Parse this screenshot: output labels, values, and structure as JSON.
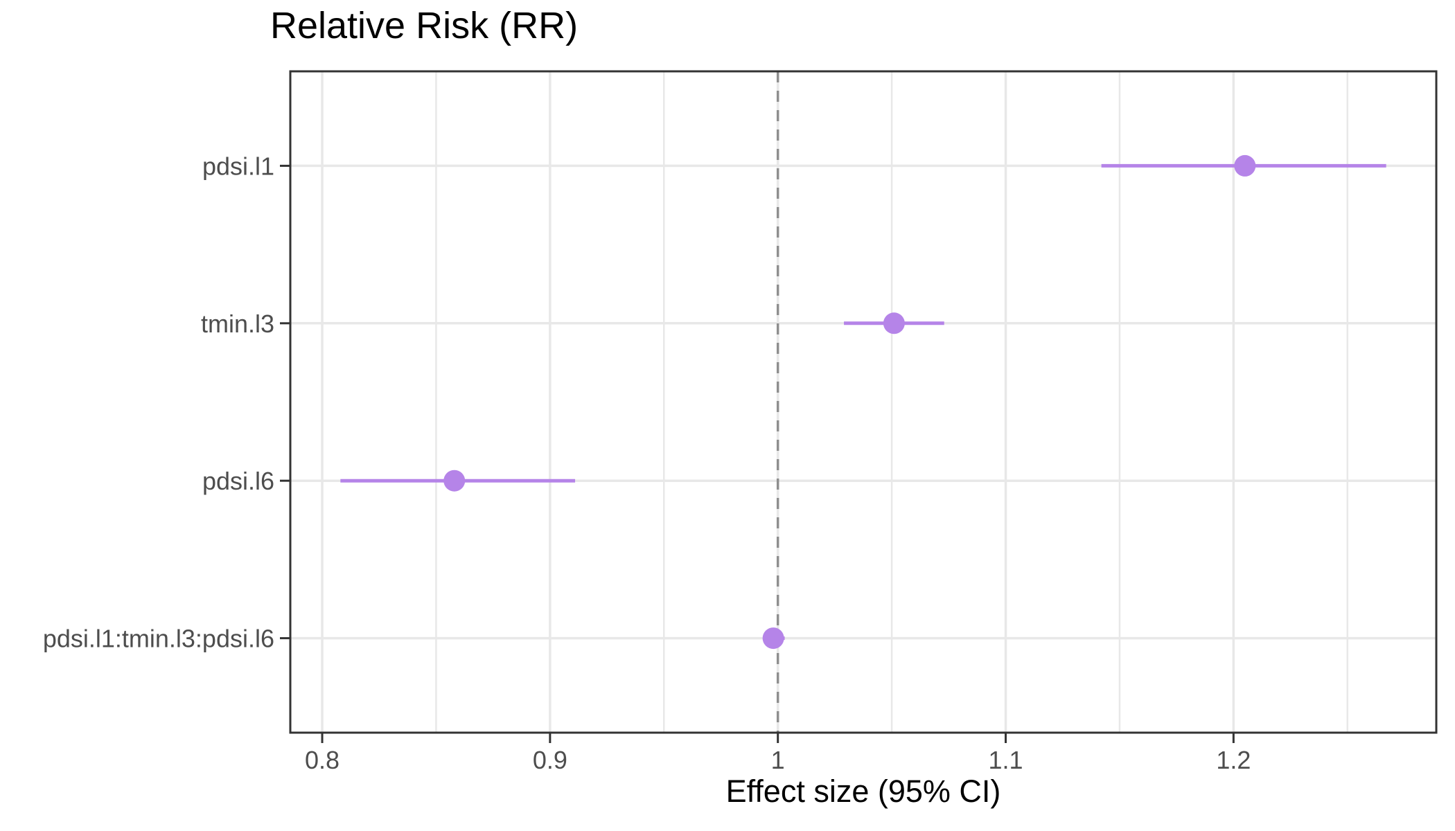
{
  "chart_data": {
    "type": "scatter",
    "variant": "forest-plot-dot-with-ci",
    "title": "Relative Risk (RR)",
    "xlabel": "Effect size (95% CI)",
    "ylabel": "",
    "legend": false,
    "grid": true,
    "categories": [
      "pdsi.l1",
      "tmin.l3",
      "pdsi.l6",
      "pdsi.l1:tmin.l3:pdsi.l6"
    ],
    "points": [
      {
        "label": "pdsi.l1",
        "estimate": 1.205,
        "ci_low": 1.142,
        "ci_high": 1.267
      },
      {
        "label": "tmin.l3",
        "estimate": 1.051,
        "ci_low": 1.029,
        "ci_high": 1.073
      },
      {
        "label": "pdsi.l6",
        "estimate": 0.858,
        "ci_low": 0.808,
        "ci_high": 0.911
      },
      {
        "label": "pdsi.l1:tmin.l3:pdsi.l6",
        "estimate": 0.998,
        "ci_low": 0.994,
        "ci_high": 1.003
      }
    ],
    "x_axis": {
      "range": [
        0.786,
        1.289
      ],
      "tick_values": [
        0.8,
        0.9,
        1.0,
        1.1,
        1.2
      ],
      "tick_labels": [
        "0.8",
        "0.9",
        "1",
        "1.1",
        "1.2"
      ],
      "minor_tick_values": [
        0.85,
        0.95,
        1.05,
        1.15,
        1.25
      ]
    },
    "reference_line": {
      "x": 1.0,
      "style": "dashed"
    },
    "colors": {
      "point": "#b584e8",
      "ci_line": "#b584e8",
      "grid": "#e8e8e8",
      "reference_line": "#8f8f8f",
      "panel_border": "#333333",
      "axis_tick": "#333333",
      "tick_label": "#4d4d4d",
      "title_text": "#000000"
    }
  }
}
